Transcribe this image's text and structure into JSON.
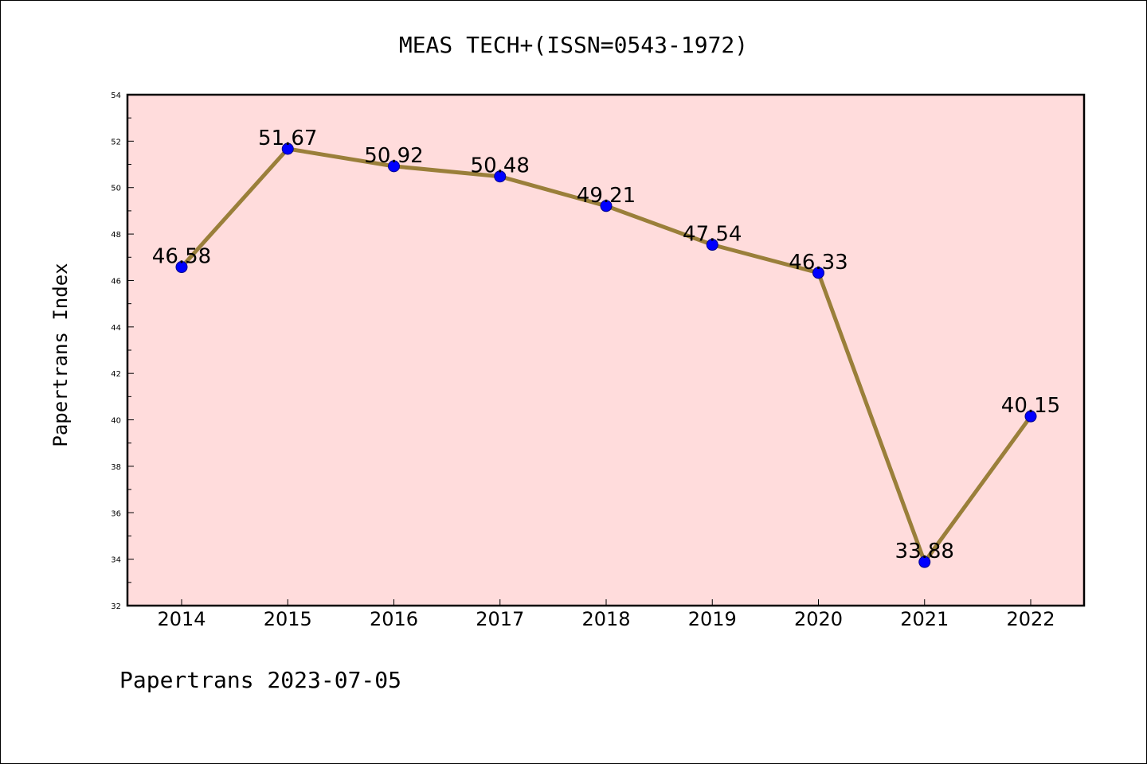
{
  "chart_data": {
    "type": "line",
    "title": "MEAS TECH+(ISSN=0543-1972)",
    "ylabel": "Papertrans Index",
    "xlabel": "",
    "footer": "Papertrans 2023-07-05",
    "categories": [
      "2014",
      "2015",
      "2016",
      "2017",
      "2018",
      "2019",
      "2020",
      "2021",
      "2022"
    ],
    "series": [
      {
        "values": [
          46.58,
          51.67,
          50.92,
          50.48,
          49.21,
          47.54,
          46.33,
          33.88,
          40.15
        ],
        "data_labels": [
          "46.58",
          "51.67",
          "50.92",
          "50.48",
          "49.21",
          "47.54",
          "46.33",
          "33.88",
          "40.15"
        ]
      }
    ],
    "ylim": [
      32,
      54
    ],
    "y_ticks": [
      "32",
      "34",
      "36",
      "38",
      "40",
      "42",
      "44",
      "46",
      "48",
      "50",
      "52",
      "54"
    ],
    "grid": false,
    "legend": "none",
    "colors": {
      "plot_background": "#ffdcdc",
      "line": "#9a7f3a",
      "marker": "#0000ff",
      "axes": "#000000"
    }
  }
}
